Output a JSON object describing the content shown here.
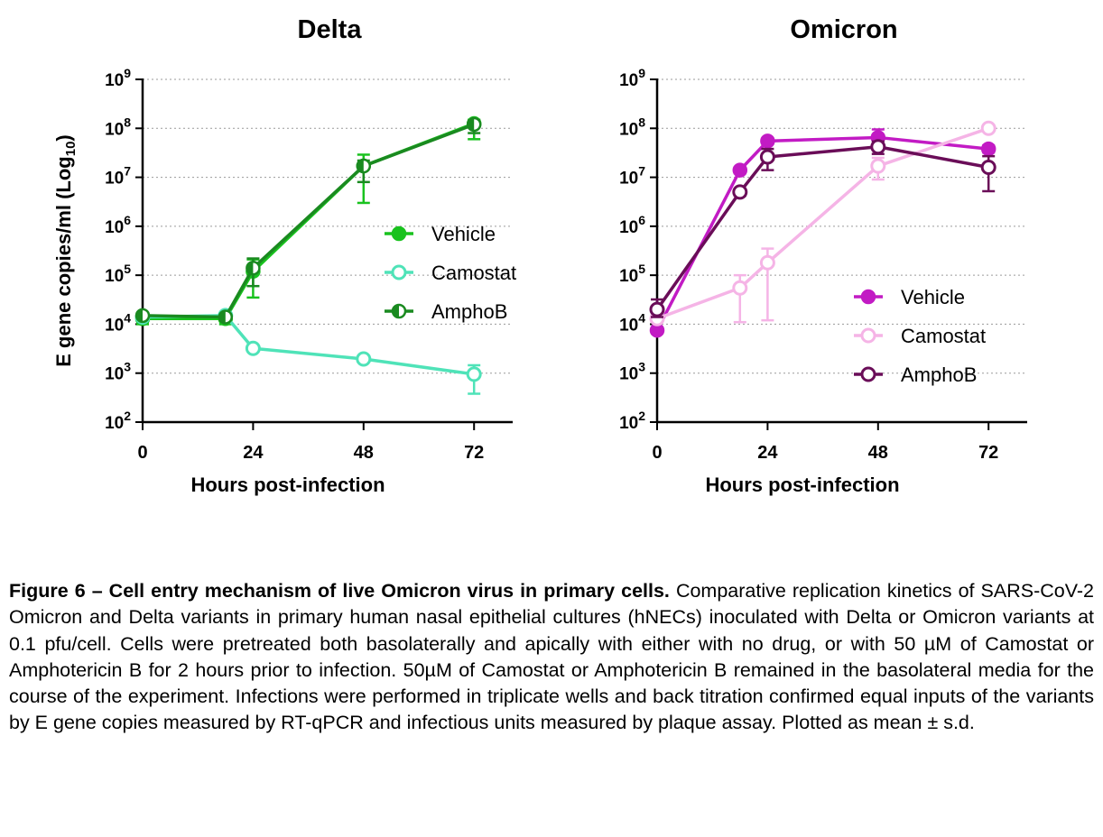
{
  "figure": {
    "caption_lead": "Figure 6 – Cell entry mechanism of live Omicron virus in primary cells.",
    "caption_body": "Comparative replication kinetics of SARS-CoV-2 Omicron and Delta variants in primary human nasal epithelial cultures (hNECs) inoculated with Delta or Omicron variants at 0.1 pfu/cell. Cells were pretreated both basolaterally and apically with either with no drug, or with 50 µM of Camostat or Amphotericin B for 2 hours prior to infection. 50µM of Camostat or Amphotericin B remained in the basolateral media for the course of the experiment. Infections were performed in triplicate wells and back titration confirmed equal inputs of the variants by E gene copies measured by RT-qPCR and infectious units measured by plaque assay. Plotted as mean ± s.d."
  },
  "chart_data": [
    {
      "type": "line",
      "title": "Delta",
      "xlabel": "Hours post-infection",
      "ylabel": "E gene copies/ml (Log",
      "ylabel_sub": "10",
      "ylabel_close": ")",
      "xticks": [
        "0",
        "24",
        "48",
        "72"
      ],
      "xtick_values": [
        0,
        24,
        48,
        72
      ],
      "xlim": [
        0,
        80
      ],
      "yscale": "log",
      "ylim": [
        100,
        1000000000
      ],
      "ytick_base": "10",
      "ytick_exponents": [
        "2",
        "3",
        "4",
        "5",
        "6",
        "7",
        "8",
        "9"
      ],
      "grid": "dotted horizontal",
      "legend_position": "middle-right",
      "series": [
        {
          "name": "Vehicle",
          "color": "#19c21e",
          "marker": "filled",
          "x": [
            0,
            18,
            24,
            48,
            72
          ],
          "y": [
            13000,
            13000,
            120000,
            17000000,
            125000000
          ],
          "err_low": [
            10000,
            10000,
            35000,
            3000000,
            60000000
          ],
          "err_high": [
            16000,
            16000,
            210000,
            29000000,
            150000000
          ]
        },
        {
          "name": "Camostat",
          "color": "#4fe3b8",
          "marker": "open",
          "x": [
            0,
            18,
            24,
            48,
            72
          ],
          "y": [
            14000,
            15000,
            3200,
            1950,
            950
          ],
          "err_low": [
            12000,
            13000,
            2900,
            1800,
            380
          ],
          "err_high": [
            16000,
            17000,
            3500,
            2100,
            1450
          ]
        },
        {
          "name": "AmphoB",
          "color": "#1a8a20",
          "marker": "half",
          "x": [
            0,
            18,
            24,
            48,
            72
          ],
          "y": [
            15000,
            14000,
            140000,
            17000000,
            120000000
          ],
          "err_low": [
            13000,
            12000,
            60000,
            8000000,
            80000000
          ],
          "err_high": [
            17000,
            16000,
            220000,
            22000000,
            145000000
          ]
        }
      ]
    },
    {
      "type": "line",
      "title": "Omicron",
      "xlabel": "Hours post-infection",
      "xticks": [
        "0",
        "24",
        "48",
        "72"
      ],
      "xtick_values": [
        0,
        24,
        48,
        72
      ],
      "xlim": [
        0,
        80
      ],
      "yscale": "log",
      "ylim": [
        100,
        1000000000
      ],
      "ytick_base": "10",
      "ytick_exponents": [
        "2",
        "3",
        "4",
        "5",
        "6",
        "7",
        "8",
        "9"
      ],
      "grid": "dotted horizontal",
      "legend_position": "bottom-right",
      "series": [
        {
          "name": "Vehicle",
          "color": "#c21bc4",
          "marker": "filled",
          "x": [
            0,
            18,
            24,
            48,
            72
          ],
          "y": [
            7500,
            14000000,
            55000000,
            65000000,
            38000000
          ],
          "err_low": [
            6500,
            12000000,
            48000000,
            42000000,
            32000000
          ],
          "err_high": [
            8500,
            16000000,
            62000000,
            95000000,
            45000000
          ]
        },
        {
          "name": "Camostat",
          "color": "#f5b4e6",
          "marker": "open",
          "x": [
            0,
            18,
            24,
            48,
            72
          ],
          "y": [
            13000,
            55000,
            180000,
            17000000,
            100000000
          ],
          "err_low": [
            11000,
            11000,
            12000,
            9000000,
            92000000
          ],
          "err_high": [
            15000,
            100000,
            350000,
            25000000,
            108000000
          ]
        },
        {
          "name": "AmphoB",
          "color": "#6a0d58",
          "marker": "open",
          "x": [
            0,
            18,
            24,
            48,
            72
          ],
          "y": [
            20000,
            5000000,
            26000000,
            42000000,
            16000000
          ],
          "err_low": [
            14000,
            4200000,
            14000000,
            30000000,
            5200000
          ],
          "err_high": [
            32000,
            5800000,
            38000000,
            54000000,
            27000000
          ]
        }
      ]
    }
  ]
}
